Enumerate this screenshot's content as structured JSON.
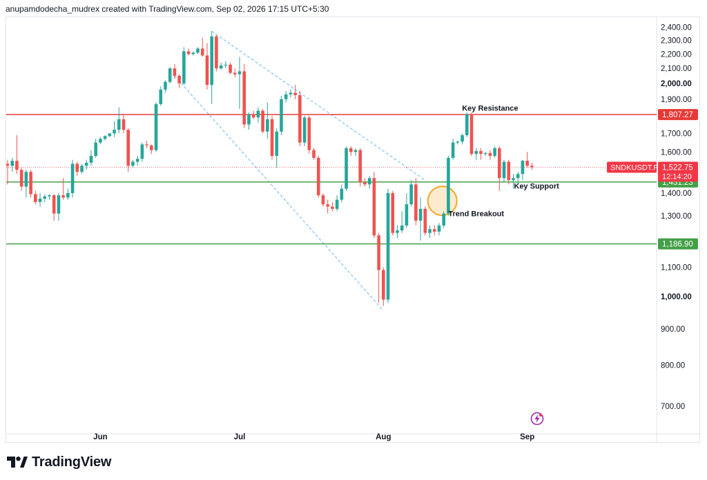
{
  "header": {
    "caption": "anupamdodecha_mudrex created with TradingView.com, Sep 02, 2026 17:15 UTC+5:30"
  },
  "brand": {
    "name": "TradingView",
    "icon": "tradingview-logo-icon"
  },
  "status_icon": "lightning-icon",
  "colors": {
    "up": "#26a69a",
    "down": "#ef5350",
    "resistance": "#e53935",
    "support": "#43a047",
    "channel": "#64b5f6",
    "price_line": "#f23645",
    "circle_stroke": "#f5a623",
    "circle_fill": "#fde8c8",
    "grid": "#f0f3fa",
    "text": "#131722"
  },
  "chart_data": {
    "type": "candlestick",
    "symbol": "SNDKUSDT.P",
    "timeframe": "1D",
    "x_labels": [
      {
        "label": "Jun",
        "date": "2026-06-01"
      },
      {
        "label": "Jul",
        "date": "2026-07-01"
      },
      {
        "label": "Aug",
        "date": "2026-08-01"
      },
      {
        "label": "Sep",
        "date": "2026-09-01"
      }
    ],
    "y_ticks": [
      {
        "value": 2400,
        "label": "2,400.00"
      },
      {
        "value": 2300,
        "label": "2,300.00"
      },
      {
        "value": 2200,
        "label": "2,200.00"
      },
      {
        "value": 2100,
        "label": "2,100.00"
      },
      {
        "value": 2000,
        "label": "2,000.00",
        "bold": true
      },
      {
        "value": 1900,
        "label": "1,900.00"
      },
      {
        "value": 1700,
        "label": "1,700.00"
      },
      {
        "value": 1600,
        "label": "1,600.00"
      },
      {
        "value": 1400,
        "label": "1,400.00"
      },
      {
        "value": 1300,
        "label": "1,300.00"
      },
      {
        "value": 1100,
        "label": "1,100.00"
      },
      {
        "value": 1000,
        "label": "1,000.00",
        "bold": true
      },
      {
        "value": 900,
        "label": "900.00"
      },
      {
        "value": 800,
        "label": "800.00"
      },
      {
        "value": 700,
        "label": "700.00"
      }
    ],
    "y_scale": "log",
    "ylim": [
      640,
      2480
    ],
    "grid": false,
    "candles": [
      {
        "d": "2026-05-12",
        "o": 1540,
        "h": 1560,
        "l": 1440,
        "c": 1530
      },
      {
        "d": "2026-05-13",
        "o": 1530,
        "h": 1570,
        "l": 1500,
        "c": 1555
      },
      {
        "d": "2026-05-14",
        "o": 1555,
        "h": 1690,
        "l": 1490,
        "c": 1510
      },
      {
        "d": "2026-05-15",
        "o": 1510,
        "h": 1520,
        "l": 1410,
        "c": 1430
      },
      {
        "d": "2026-05-16",
        "o": 1430,
        "h": 1510,
        "l": 1380,
        "c": 1500
      },
      {
        "d": "2026-05-17",
        "o": 1500,
        "h": 1510,
        "l": 1380,
        "c": 1395
      },
      {
        "d": "2026-05-18",
        "o": 1395,
        "h": 1410,
        "l": 1350,
        "c": 1360
      },
      {
        "d": "2026-05-19",
        "o": 1360,
        "h": 1400,
        "l": 1340,
        "c": 1375
      },
      {
        "d": "2026-05-20",
        "o": 1375,
        "h": 1395,
        "l": 1360,
        "c": 1385
      },
      {
        "d": "2026-05-21",
        "o": 1385,
        "h": 1395,
        "l": 1370,
        "c": 1390
      },
      {
        "d": "2026-05-22",
        "o": 1390,
        "h": 1395,
        "l": 1280,
        "c": 1310
      },
      {
        "d": "2026-05-23",
        "o": 1310,
        "h": 1400,
        "l": 1280,
        "c": 1390
      },
      {
        "d": "2026-05-24",
        "o": 1390,
        "h": 1470,
        "l": 1370,
        "c": 1380
      },
      {
        "d": "2026-05-25",
        "o": 1380,
        "h": 1420,
        "l": 1370,
        "c": 1400
      },
      {
        "d": "2026-05-26",
        "o": 1400,
        "h": 1560,
        "l": 1380,
        "c": 1540
      },
      {
        "d": "2026-05-27",
        "o": 1540,
        "h": 1550,
        "l": 1480,
        "c": 1500
      },
      {
        "d": "2026-05-28",
        "o": 1500,
        "h": 1540,
        "l": 1490,
        "c": 1530
      },
      {
        "d": "2026-05-29",
        "o": 1530,
        "h": 1560,
        "l": 1510,
        "c": 1545
      },
      {
        "d": "2026-05-30",
        "o": 1545,
        "h": 1610,
        "l": 1530,
        "c": 1580
      },
      {
        "d": "2026-05-31",
        "o": 1580,
        "h": 1670,
        "l": 1570,
        "c": 1650
      },
      {
        "d": "2026-06-01",
        "o": 1650,
        "h": 1680,
        "l": 1640,
        "c": 1670
      },
      {
        "d": "2026-06-02",
        "o": 1670,
        "h": 1690,
        "l": 1660,
        "c": 1685
      },
      {
        "d": "2026-06-03",
        "o": 1685,
        "h": 1700,
        "l": 1680,
        "c": 1700
      },
      {
        "d": "2026-06-04",
        "o": 1700,
        "h": 1770,
        "l": 1680,
        "c": 1720
      },
      {
        "d": "2026-06-05",
        "o": 1720,
        "h": 1850,
        "l": 1700,
        "c": 1780
      },
      {
        "d": "2026-06-06",
        "o": 1780,
        "h": 1810,
        "l": 1700,
        "c": 1720
      },
      {
        "d": "2026-06-07",
        "o": 1720,
        "h": 1730,
        "l": 1500,
        "c": 1530
      },
      {
        "d": "2026-06-08",
        "o": 1530,
        "h": 1560,
        "l": 1520,
        "c": 1550
      },
      {
        "d": "2026-06-09",
        "o": 1550,
        "h": 1580,
        "l": 1530,
        "c": 1565
      },
      {
        "d": "2026-06-10",
        "o": 1565,
        "h": 1650,
        "l": 1550,
        "c": 1640
      },
      {
        "d": "2026-06-11",
        "o": 1640,
        "h": 1660,
        "l": 1620,
        "c": 1635
      },
      {
        "d": "2026-06-12",
        "o": 1635,
        "h": 1640,
        "l": 1590,
        "c": 1610
      },
      {
        "d": "2026-06-13",
        "o": 1610,
        "h": 1880,
        "l": 1600,
        "c": 1870
      },
      {
        "d": "2026-06-14",
        "o": 1870,
        "h": 1980,
        "l": 1860,
        "c": 1960
      },
      {
        "d": "2026-06-15",
        "o": 1960,
        "h": 2020,
        "l": 1940,
        "c": 2010
      },
      {
        "d": "2026-06-16",
        "o": 2010,
        "h": 2110,
        "l": 2000,
        "c": 2100
      },
      {
        "d": "2026-06-17",
        "o": 2100,
        "h": 2130,
        "l": 2030,
        "c": 2050
      },
      {
        "d": "2026-06-18",
        "o": 2050,
        "h": 2060,
        "l": 1970,
        "c": 2000
      },
      {
        "d": "2026-06-19",
        "o": 2000,
        "h": 2250,
        "l": 1990,
        "c": 2220
      },
      {
        "d": "2026-06-20",
        "o": 2220,
        "h": 2240,
        "l": 2190,
        "c": 2200
      },
      {
        "d": "2026-06-21",
        "o": 2200,
        "h": 2220,
        "l": 2190,
        "c": 2210
      },
      {
        "d": "2026-06-22",
        "o": 2210,
        "h": 2250,
        "l": 2200,
        "c": 2240
      },
      {
        "d": "2026-06-23",
        "o": 2240,
        "h": 2320,
        "l": 2180,
        "c": 2190
      },
      {
        "d": "2026-06-24",
        "o": 2190,
        "h": 2280,
        "l": 1960,
        "c": 1990
      },
      {
        "d": "2026-06-25",
        "o": 1990,
        "h": 2370,
        "l": 1870,
        "c": 2330
      },
      {
        "d": "2026-06-26",
        "o": 2330,
        "h": 2340,
        "l": 2080,
        "c": 2100
      },
      {
        "d": "2026-06-27",
        "o": 2100,
        "h": 2140,
        "l": 2090,
        "c": 2120
      },
      {
        "d": "2026-06-28",
        "o": 2120,
        "h": 2150,
        "l": 2100,
        "c": 2125
      },
      {
        "d": "2026-06-29",
        "o": 2125,
        "h": 2140,
        "l": 2060,
        "c": 2070
      },
      {
        "d": "2026-06-30",
        "o": 2070,
        "h": 2100,
        "l": 2040,
        "c": 2060
      },
      {
        "d": "2026-07-01",
        "o": 2060,
        "h": 2180,
        "l": 1840,
        "c": 2080
      },
      {
        "d": "2026-07-02",
        "o": 2080,
        "h": 2130,
        "l": 1730,
        "c": 1750
      },
      {
        "d": "2026-07-03",
        "o": 1750,
        "h": 1820,
        "l": 1720,
        "c": 1810
      },
      {
        "d": "2026-07-04",
        "o": 1810,
        "h": 1830,
        "l": 1780,
        "c": 1790
      },
      {
        "d": "2026-07-05",
        "o": 1790,
        "h": 1850,
        "l": 1760,
        "c": 1830
      },
      {
        "d": "2026-07-06",
        "o": 1830,
        "h": 1840,
        "l": 1700,
        "c": 1710
      },
      {
        "d": "2026-07-07",
        "o": 1710,
        "h": 1880,
        "l": 1670,
        "c": 1780
      },
      {
        "d": "2026-07-08",
        "o": 1780,
        "h": 1800,
        "l": 1560,
        "c": 1580
      },
      {
        "d": "2026-07-09",
        "o": 1580,
        "h": 1730,
        "l": 1520,
        "c": 1710
      },
      {
        "d": "2026-07-10",
        "o": 1710,
        "h": 1920,
        "l": 1690,
        "c": 1900
      },
      {
        "d": "2026-07-11",
        "o": 1900,
        "h": 1950,
        "l": 1880,
        "c": 1930
      },
      {
        "d": "2026-07-12",
        "o": 1930,
        "h": 1960,
        "l": 1910,
        "c": 1940
      },
      {
        "d": "2026-07-13",
        "o": 1940,
        "h": 1990,
        "l": 1900,
        "c": 1925
      },
      {
        "d": "2026-07-14",
        "o": 1925,
        "h": 1950,
        "l": 1630,
        "c": 1650
      },
      {
        "d": "2026-07-15",
        "o": 1650,
        "h": 1800,
        "l": 1630,
        "c": 1790
      },
      {
        "d": "2026-07-16",
        "o": 1790,
        "h": 1800,
        "l": 1590,
        "c": 1610
      },
      {
        "d": "2026-07-17",
        "o": 1610,
        "h": 1620,
        "l": 1560,
        "c": 1570
      },
      {
        "d": "2026-07-18",
        "o": 1570,
        "h": 1580,
        "l": 1380,
        "c": 1390
      },
      {
        "d": "2026-07-19",
        "o": 1390,
        "h": 1400,
        "l": 1340,
        "c": 1350
      },
      {
        "d": "2026-07-20",
        "o": 1350,
        "h": 1370,
        "l": 1310,
        "c": 1340
      },
      {
        "d": "2026-07-21",
        "o": 1340,
        "h": 1360,
        "l": 1320,
        "c": 1330
      },
      {
        "d": "2026-07-22",
        "o": 1330,
        "h": 1390,
        "l": 1320,
        "c": 1370
      },
      {
        "d": "2026-07-23",
        "o": 1370,
        "h": 1440,
        "l": 1360,
        "c": 1420
      },
      {
        "d": "2026-07-24",
        "o": 1420,
        "h": 1630,
        "l": 1410,
        "c": 1620
      },
      {
        "d": "2026-07-25",
        "o": 1620,
        "h": 1630,
        "l": 1580,
        "c": 1600
      },
      {
        "d": "2026-07-26",
        "o": 1600,
        "h": 1620,
        "l": 1580,
        "c": 1610
      },
      {
        "d": "2026-07-27",
        "o": 1610,
        "h": 1620,
        "l": 1430,
        "c": 1450
      },
      {
        "d": "2026-07-28",
        "o": 1450,
        "h": 1470,
        "l": 1430,
        "c": 1440
      },
      {
        "d": "2026-07-29",
        "o": 1440,
        "h": 1480,
        "l": 1420,
        "c": 1470
      },
      {
        "d": "2026-07-30",
        "o": 1470,
        "h": 1500,
        "l": 1210,
        "c": 1220
      },
      {
        "d": "2026-07-31",
        "o": 1220,
        "h": 1230,
        "l": 980,
        "c": 1090
      },
      {
        "d": "2026-08-01",
        "o": 1090,
        "h": 1100,
        "l": 970,
        "c": 990
      },
      {
        "d": "2026-08-02",
        "o": 990,
        "h": 1420,
        "l": 980,
        "c": 1400
      },
      {
        "d": "2026-08-03",
        "o": 1400,
        "h": 1410,
        "l": 1220,
        "c": 1230
      },
      {
        "d": "2026-08-04",
        "o": 1230,
        "h": 1260,
        "l": 1210,
        "c": 1240
      },
      {
        "d": "2026-08-05",
        "o": 1240,
        "h": 1320,
        "l": 1230,
        "c": 1260
      },
      {
        "d": "2026-08-06",
        "o": 1260,
        "h": 1400,
        "l": 1250,
        "c": 1350
      },
      {
        "d": "2026-08-07",
        "o": 1350,
        "h": 1460,
        "l": 1340,
        "c": 1440
      },
      {
        "d": "2026-08-08",
        "o": 1440,
        "h": 1470,
        "l": 1260,
        "c": 1280
      },
      {
        "d": "2026-08-09",
        "o": 1280,
        "h": 1380,
        "l": 1200,
        "c": 1330
      },
      {
        "d": "2026-08-10",
        "o": 1330,
        "h": 1340,
        "l": 1220,
        "c": 1230
      },
      {
        "d": "2026-08-11",
        "o": 1230,
        "h": 1260,
        "l": 1210,
        "c": 1245
      },
      {
        "d": "2026-08-12",
        "o": 1245,
        "h": 1260,
        "l": 1220,
        "c": 1235
      },
      {
        "d": "2026-08-13",
        "o": 1235,
        "h": 1270,
        "l": 1220,
        "c": 1260
      },
      {
        "d": "2026-08-14",
        "o": 1260,
        "h": 1320,
        "l": 1250,
        "c": 1310
      },
      {
        "d": "2026-08-15",
        "o": 1310,
        "h": 1580,
        "l": 1300,
        "c": 1570
      },
      {
        "d": "2026-08-16",
        "o": 1570,
        "h": 1670,
        "l": 1560,
        "c": 1650
      },
      {
        "d": "2026-08-17",
        "o": 1650,
        "h": 1660,
        "l": 1640,
        "c": 1655
      },
      {
        "d": "2026-08-18",
        "o": 1655,
        "h": 1700,
        "l": 1640,
        "c": 1690
      },
      {
        "d": "2026-08-19",
        "o": 1690,
        "h": 1820,
        "l": 1680,
        "c": 1810
      },
      {
        "d": "2026-08-20",
        "o": 1810,
        "h": 1820,
        "l": 1580,
        "c": 1590
      },
      {
        "d": "2026-08-21",
        "o": 1590,
        "h": 1620,
        "l": 1560,
        "c": 1605
      },
      {
        "d": "2026-08-22",
        "o": 1605,
        "h": 1620,
        "l": 1560,
        "c": 1590
      },
      {
        "d": "2026-08-23",
        "o": 1590,
        "h": 1600,
        "l": 1580,
        "c": 1595
      },
      {
        "d": "2026-08-24",
        "o": 1595,
        "h": 1610,
        "l": 1560,
        "c": 1580
      },
      {
        "d": "2026-08-25",
        "o": 1580,
        "h": 1630,
        "l": 1570,
        "c": 1620
      },
      {
        "d": "2026-08-26",
        "o": 1620,
        "h": 1630,
        "l": 1410,
        "c": 1470
      },
      {
        "d": "2026-08-27",
        "o": 1470,
        "h": 1560,
        "l": 1450,
        "c": 1550
      },
      {
        "d": "2026-08-28",
        "o": 1550,
        "h": 1560,
        "l": 1440,
        "c": 1460
      },
      {
        "d": "2026-08-29",
        "o": 1460,
        "h": 1490,
        "l": 1420,
        "c": 1470
      },
      {
        "d": "2026-08-30",
        "o": 1470,
        "h": 1500,
        "l": 1440,
        "c": 1490
      },
      {
        "d": "2026-08-31",
        "o": 1490,
        "h": 1560,
        "l": 1460,
        "c": 1555
      },
      {
        "d": "2026-09-01",
        "o": 1555,
        "h": 1600,
        "l": 1520,
        "c": 1530
      },
      {
        "d": "2026-09-02",
        "o": 1530,
        "h": 1545,
        "l": 1510,
        "c": 1522.75
      }
    ],
    "horizontal_levels": [
      {
        "name": "Key Resistance",
        "value": 1807.27,
        "label": "1,807.27",
        "color": "#e53935"
      },
      {
        "name": "Key Support",
        "value": 1451.23,
        "label": "1,451.23",
        "color": "#43a047"
      },
      {
        "name": "",
        "value": 1186.9,
        "label": "1,186.90",
        "color": "#43a047"
      }
    ],
    "channel": {
      "upper": [
        {
          "d": "2026-06-25",
          "v": 2370
        },
        {
          "d": "2026-08-10",
          "v": 1460
        }
      ],
      "lower": [
        {
          "d": "2026-06-17",
          "v": 2050
        },
        {
          "d": "2026-08-01",
          "v": 955
        }
      ]
    },
    "annotations": [
      {
        "text": "Key Resistance",
        "d": "2026-08-24",
        "v": 1830
      },
      {
        "text": "Key Support",
        "d": "2026-09-03",
        "v": 1420
      },
      {
        "text": "Trend Breakout",
        "d": "2026-08-21",
        "v": 1298
      }
    ],
    "breakout_marker": {
      "d": "2026-08-14",
      "v": 1365
    },
    "last_price": {
      "symbol": "SNDKUSDT.P",
      "value": 1522.75,
      "label": "1,522.75",
      "countdown": "12:14:20"
    }
  }
}
